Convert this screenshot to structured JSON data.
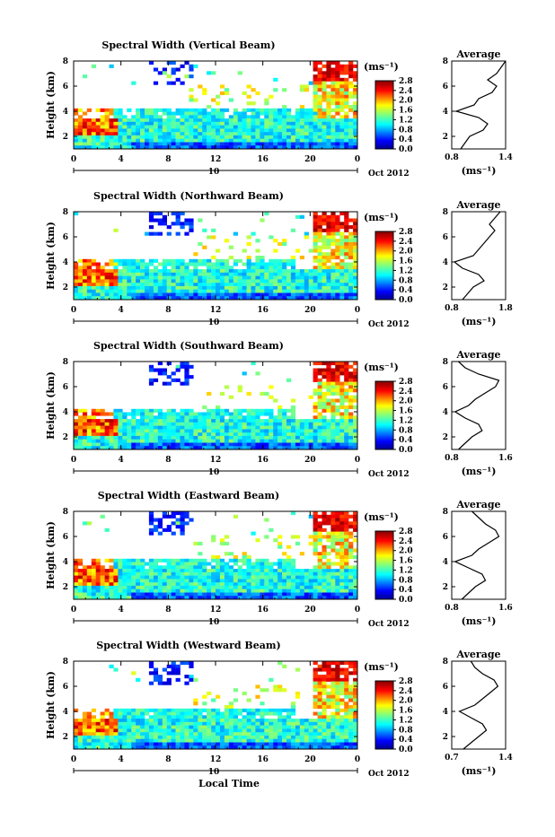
{
  "page": {
    "x_axis_title": "Local Time"
  },
  "shared": {
    "ylabel": "Height (km)",
    "yticks": [
      "2",
      "4",
      "6",
      "8"
    ],
    "xticks": [
      "0",
      "4",
      "8",
      "12",
      "16",
      "20",
      "0"
    ],
    "day_label": "10",
    "date_label": "Oct 2012",
    "unit_label": "(ms⁻¹)",
    "avg_title": "Average",
    "avg_unit": "(ms⁻¹)",
    "colorbar_ticks": [
      "0.0",
      "0.4",
      "0.8",
      "1.2",
      "1.6",
      "2.0",
      "2.4",
      "2.8"
    ]
  },
  "chart_data": [
    {
      "type": "heatmap",
      "title": "Spectral Width (Vertical Beam)",
      "xlabel": "Local Time",
      "ylabel": "Height (km)",
      "xlim": [
        0,
        24
      ],
      "ylim": [
        1,
        8
      ],
      "zlim": [
        0,
        2.8
      ],
      "avg_profile": {
        "xlim": [
          0.8,
          1.4
        ],
        "xticks": [
          "0.8",
          "1.4"
        ],
        "height": [
          1,
          1.5,
          2,
          2.5,
          3,
          3.5,
          4,
          4.5,
          5,
          5.5,
          6,
          6.5,
          7,
          7.5,
          8
        ],
        "value": [
          0.9,
          0.95,
          1.0,
          1.15,
          1.2,
          1.1,
          0.85,
          1.05,
          1.1,
          1.25,
          1.3,
          1.2,
          1.3,
          1.35,
          1.4
        ]
      }
    },
    {
      "type": "heatmap",
      "title": "Spectral Width (Northward Beam)",
      "xlabel": "Local Time",
      "ylabel": "Height (km)",
      "xlim": [
        0,
        24
      ],
      "ylim": [
        1,
        8
      ],
      "zlim": [
        0,
        2.8
      ],
      "avg_profile": {
        "xlim": [
          0.8,
          1.8
        ],
        "xticks": [
          "0.8",
          "1.8"
        ],
        "height": [
          1,
          1.5,
          2,
          2.5,
          3,
          3.5,
          4,
          4.5,
          5,
          5.5,
          6,
          6.5,
          7,
          7.5,
          8
        ],
        "value": [
          1.0,
          1.1,
          1.2,
          1.4,
          1.3,
          1.0,
          0.85,
          1.2,
          1.3,
          1.4,
          1.5,
          1.6,
          1.5,
          1.6,
          1.7
        ]
      }
    },
    {
      "type": "heatmap",
      "title": "Spectral Width (Southward Beam)",
      "xlabel": "Local Time",
      "ylabel": "Height (km)",
      "xlim": [
        0,
        24
      ],
      "ylim": [
        1,
        8
      ],
      "zlim": [
        0,
        2.8
      ],
      "avg_profile": {
        "xlim": [
          0.8,
          1.6
        ],
        "xticks": [
          "0.8",
          "1.6"
        ],
        "height": [
          1,
          1.5,
          2,
          2.5,
          3,
          3.5,
          4,
          4.5,
          5,
          5.5,
          6,
          6.5,
          7,
          7.5,
          8
        ],
        "value": [
          0.9,
          1.0,
          1.1,
          1.25,
          1.2,
          1.0,
          0.85,
          1.05,
          1.15,
          1.3,
          1.45,
          1.5,
          1.2,
          1.0,
          0.9
        ]
      }
    },
    {
      "type": "heatmap",
      "title": "Spectral Width (Eastward Beam)",
      "xlabel": "Local Time",
      "ylabel": "Height (km)",
      "xlim": [
        0,
        24
      ],
      "ylim": [
        1,
        8
      ],
      "zlim": [
        0,
        2.8
      ],
      "avg_profile": {
        "xlim": [
          0.8,
          1.6
        ],
        "xticks": [
          "0.8",
          "1.6"
        ],
        "height": [
          1,
          1.5,
          2,
          2.5,
          3,
          3.5,
          4,
          4.5,
          5,
          5.5,
          6,
          6.5,
          7,
          7.5,
          8
        ],
        "value": [
          0.95,
          1.05,
          1.15,
          1.3,
          1.25,
          1.05,
          0.85,
          1.1,
          1.2,
          1.35,
          1.5,
          1.45,
          1.3,
          1.2,
          1.1
        ]
      }
    },
    {
      "type": "heatmap",
      "title": "Spectral Width (Westward Beam)",
      "xlabel": "Local Time",
      "ylabel": "Height (km)",
      "xlim": [
        0,
        24
      ],
      "ylim": [
        1,
        8
      ],
      "zlim": [
        0,
        2.8
      ],
      "avg_profile": {
        "xlim": [
          0.7,
          1.4
        ],
        "xticks": [
          "0.7",
          "1.4"
        ],
        "height": [
          1,
          1.5,
          2,
          2.5,
          3,
          3.5,
          4,
          4.5,
          5,
          5.5,
          6,
          6.5,
          7,
          7.5,
          8
        ],
        "value": [
          0.85,
          0.95,
          1.05,
          1.15,
          1.1,
          0.95,
          0.8,
          1.0,
          1.1,
          1.2,
          1.3,
          1.25,
          1.1,
          1.0,
          0.95
        ]
      }
    }
  ]
}
